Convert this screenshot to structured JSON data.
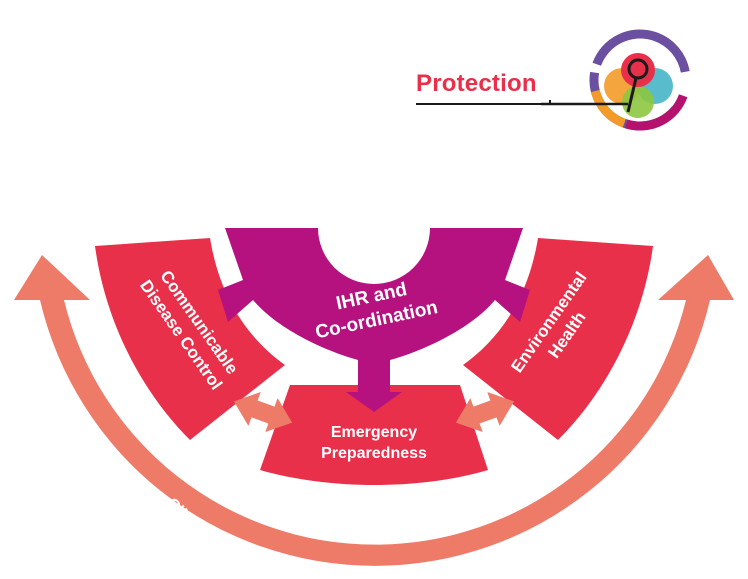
{
  "header": {
    "title": "Protection"
  },
  "logo": {
    "icon": "protection-emblem-icon",
    "colors": [
      "#6B4FA0",
      "#E8304A",
      "#F39B28",
      "#3BB0C4",
      "#8DC63F",
      "#B5126E"
    ]
  },
  "diagram": {
    "center": {
      "line1": "IHR and",
      "line2": "Co-ordination"
    },
    "left": {
      "line1": "Communicable",
      "line2": "Disease Control"
    },
    "right": {
      "line1": "Environmental",
      "line2": "Health"
    },
    "bottom": {
      "line1": "Emergency",
      "line2": "Preparedness"
    },
    "arc_text": "Climate Change and Sustainability – adaptation and mitigation"
  },
  "colors": {
    "red": "#E8304A",
    "magenta": "#B5127F",
    "salmon": "#EE7A68",
    "title": "#E8304A"
  }
}
